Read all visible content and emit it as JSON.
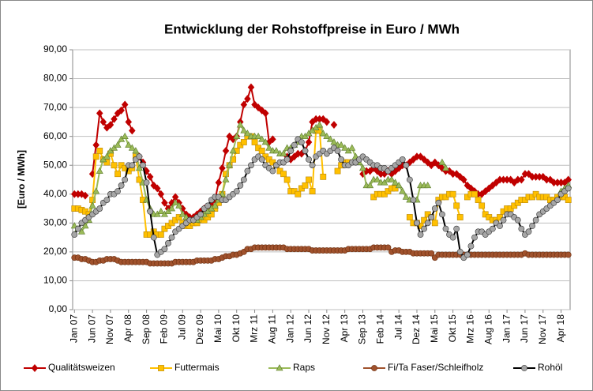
{
  "chart_data": {
    "type": "line",
    "title": "Entwicklung der Rohstoffpreise in Euro / MWh",
    "y_label": "[Euro / MWh]",
    "ylim": [
      0,
      90
    ],
    "yticks": [
      {
        "value": 0,
        "label": "0,00"
      },
      {
        "value": 10,
        "label": "10,00"
      },
      {
        "value": 20,
        "label": "20,00"
      },
      {
        "value": 30,
        "label": "30,00"
      },
      {
        "value": 40,
        "label": "40,00"
      },
      {
        "value": 50,
        "label": "50,00"
      },
      {
        "value": 60,
        "label": "60,00"
      },
      {
        "value": 70,
        "label": "70,00"
      },
      {
        "value": 80,
        "label": "80,00"
      },
      {
        "value": 90,
        "label": "90,00"
      }
    ],
    "grid": true,
    "legend": "bottom",
    "categories": [
      "Jan 07",
      null,
      null,
      null,
      null,
      "Jun 07",
      null,
      null,
      null,
      null,
      "Nov 07",
      null,
      null,
      null,
      null,
      "Apr 08",
      null,
      null,
      null,
      null,
      "Sep 08",
      null,
      null,
      null,
      null,
      "Feb 09",
      null,
      null,
      null,
      null,
      "Jul 09",
      null,
      null,
      null,
      null,
      "Dez 09",
      null,
      null,
      null,
      null,
      "Mai 10",
      null,
      null,
      null,
      null,
      "Okt 10",
      null,
      null,
      null,
      null,
      "Mrz 11",
      null,
      null,
      null,
      null,
      "Aug 11",
      null,
      null,
      null,
      null,
      "Jan 12",
      null,
      null,
      null,
      null,
      "Jun 12",
      null,
      null,
      null,
      null,
      "Nov 12",
      null,
      null,
      null,
      null,
      "Apr 13",
      null,
      null,
      null,
      null,
      "Sep 13",
      null,
      null,
      null,
      null,
      "Feb 14",
      null,
      null,
      null,
      null,
      "Jul 14",
      null,
      null,
      null,
      null,
      "Dez 14",
      null,
      null,
      null,
      null,
      "Mai 15",
      null,
      null,
      null,
      null,
      "Okt 15",
      null,
      null,
      null,
      null,
      "Mrz 16",
      null,
      null,
      null,
      null,
      "Aug 16",
      null,
      null,
      null,
      null,
      "Jan 17",
      null,
      null,
      null,
      null,
      "Jun 17",
      null,
      null,
      null,
      null,
      "Nov 17",
      null,
      null,
      null,
      null,
      "Apr 18",
      null,
      null
    ],
    "series": [
      {
        "name": "Qualitätsweizen",
        "color": "#c00000",
        "line_color": "#c00000",
        "marker": "diamond",
        "values": [
          40,
          40,
          40,
          39.5,
          null,
          47,
          57,
          68,
          65,
          63,
          64,
          66,
          68,
          69,
          71,
          65,
          62,
          null,
          53,
          51,
          48,
          46,
          43,
          42,
          40,
          37,
          35,
          37,
          39,
          37,
          35,
          33,
          32,
          32,
          33,
          34,
          35,
          35,
          36,
          38,
          44,
          49,
          55,
          60,
          59,
          60,
          65,
          71,
          73,
          77,
          71,
          70,
          69,
          68,
          58,
          59,
          null,
          null,
          null,
          53,
          52,
          53,
          54,
          54,
          55,
          58,
          65,
          66,
          66,
          66,
          65,
          null,
          64,
          null,
          null,
          null,
          null,
          null,
          null,
          null,
          47,
          48,
          48,
          49,
          48,
          47,
          47,
          48,
          47,
          48,
          49,
          50,
          50,
          51,
          52,
          53,
          53,
          52,
          51,
          50,
          51,
          50,
          49,
          48,
          48,
          47,
          47,
          46,
          45,
          43,
          42,
          41,
          40,
          40,
          41,
          42,
          43,
          44,
          45,
          45,
          45,
          45,
          44,
          45,
          45,
          47,
          47,
          46,
          46,
          46,
          46,
          45,
          45,
          44,
          44,
          44,
          44,
          45
        ]
      },
      {
        "name": "Futtermais",
        "color": "#ffc000",
        "line_color": "#ffc000",
        "marker": "square",
        "values": [
          35,
          35,
          34.5,
          34,
          33,
          38,
          53,
          55,
          52,
          51,
          54,
          50,
          47,
          50,
          49,
          48,
          49,
          53,
          45,
          38,
          26,
          26,
          27,
          26,
          26,
          28,
          29,
          30,
          31,
          32,
          30,
          29,
          29,
          30,
          30,
          31,
          31,
          32,
          33,
          35,
          37,
          40,
          47,
          50,
          52,
          55,
          57,
          58,
          60,
          60,
          58,
          56,
          55,
          53,
          52,
          51,
          50,
          48,
          47,
          45,
          41,
          41,
          40,
          42,
          43,
          45,
          41,
          62,
          62,
          46,
          null,
          null,
          null,
          48,
          50,
          51,
          51,
          null,
          null,
          null,
          null,
          null,
          null,
          39,
          40,
          40,
          40,
          41,
          42,
          42,
          null,
          null,
          null,
          32,
          30,
          30,
          29,
          31,
          33,
          32,
          30,
          38,
          39,
          39,
          40,
          40,
          36,
          32,
          null,
          39,
          40,
          40,
          38,
          36,
          33,
          32,
          31,
          31,
          32,
          34,
          35,
          35,
          36,
          37,
          38,
          38,
          39,
          39,
          40,
          39,
          39,
          39,
          38,
          38,
          39,
          39,
          39,
          38
        ]
      },
      {
        "name": "Raps",
        "color": "#9bbb59",
        "line_color": "#9bbb59",
        "marker": "triangle",
        "values": [
          29,
          28,
          27,
          29,
          31,
          36,
          41,
          48,
          52,
          53,
          55,
          56,
          57,
          59,
          60,
          57,
          56,
          55,
          49,
          44,
          38,
          35,
          33,
          33,
          34,
          33,
          34,
          35,
          37,
          36,
          33,
          32,
          31,
          31,
          31,
          32,
          33,
          34,
          35,
          36,
          38,
          40,
          45,
          50,
          55,
          60,
          64,
          62,
          61,
          60,
          60,
          60,
          59,
          58,
          56,
          55,
          55,
          54,
          54,
          56,
          56,
          57,
          58,
          60,
          60,
          61,
          62,
          63,
          64,
          61,
          60,
          59,
          58,
          57,
          57,
          56,
          55,
          56,
          53,
          51,
          49,
          43,
          43,
          45,
          45,
          44,
          44,
          45,
          45,
          44,
          43,
          41,
          39,
          38,
          38,
          38,
          43,
          43,
          43,
          null,
          null,
          null,
          51,
          49,
          null,
          null,
          null,
          null,
          null,
          null,
          null,
          null,
          null,
          null,
          null,
          null,
          null,
          null,
          null,
          null,
          null,
          null,
          null,
          null,
          null,
          null,
          null,
          null,
          null,
          null,
          null,
          null,
          null,
          null,
          null,
          41,
          42,
          43
        ]
      },
      {
        "name": "Fi/Ta Faser/Schleifholz",
        "color": "#a0522d",
        "line_color": "#a0522d",
        "marker": "circle",
        "values": [
          18,
          18,
          17.5,
          17.5,
          17,
          16.5,
          16.5,
          17,
          17,
          17.5,
          17.5,
          17.5,
          17,
          16.5,
          16.5,
          16.5,
          16.5,
          16.5,
          16.5,
          16.5,
          16.5,
          16,
          16,
          16,
          16,
          16,
          16,
          16,
          16.5,
          16.5,
          16.5,
          16.5,
          16.5,
          16.5,
          17,
          17,
          17,
          17,
          17,
          17.5,
          17.5,
          18,
          18.5,
          18.5,
          19,
          19,
          19.5,
          20,
          21,
          21,
          21.5,
          21.5,
          21.5,
          21.5,
          21.5,
          21.5,
          21.5,
          21.5,
          21.5,
          21,
          21,
          21,
          21,
          21,
          21,
          21,
          20.5,
          20.5,
          20.5,
          20.5,
          20.5,
          20.5,
          20.5,
          20.5,
          20.5,
          20.5,
          21,
          21,
          21,
          21,
          21,
          21,
          21,
          21.5,
          21.5,
          21.5,
          21.5,
          21.5,
          20,
          20.5,
          20.5,
          20,
          20,
          20,
          19.5,
          19.5,
          19.5,
          19.5,
          19.5,
          19.5,
          18,
          19,
          19,
          19,
          19,
          19,
          19,
          19,
          19,
          19,
          19,
          19,
          19,
          19,
          19,
          19,
          19,
          19,
          19,
          19,
          19,
          19,
          19,
          19,
          19,
          19.5,
          19,
          19,
          19,
          19,
          19,
          19,
          19,
          19,
          19,
          19,
          19,
          19
        ]
      },
      {
        "name": "Rohöl",
        "color": "#a6a6a6",
        "line_color": "#000000",
        "marker": "circle",
        "values": [
          26,
          28,
          30,
          31,
          32,
          33,
          34,
          35,
          37,
          38,
          40,
          40,
          41,
          43,
          45,
          50,
          50,
          52,
          53,
          50,
          44,
          34,
          25,
          19,
          20,
          21,
          23,
          25,
          27,
          28,
          29,
          30,
          31,
          31,
          32,
          33,
          35,
          36,
          38,
          39,
          39,
          38,
          38,
          39,
          40,
          41,
          43,
          45,
          48,
          50,
          52,
          53,
          52,
          50,
          49,
          48,
          50,
          51,
          51,
          52,
          55,
          57,
          59,
          58,
          55,
          52,
          50,
          53,
          54,
          55,
          54,
          55,
          56,
          55,
          52,
          50,
          50,
          51,
          51,
          52,
          53,
          52,
          51,
          50,
          50,
          49,
          49,
          48,
          49,
          50,
          51,
          52,
          50,
          45,
          38,
          30,
          26,
          28,
          30,
          32,
          35,
          37,
          33,
          28,
          26,
          25,
          28,
          20,
          18,
          19,
          22,
          25,
          27,
          27,
          26,
          27,
          28,
          30,
          29,
          31,
          33,
          33,
          32,
          31,
          28,
          26,
          27,
          29,
          31,
          33,
          34,
          35,
          36,
          37,
          38,
          40,
          41,
          42
        ]
      }
    ]
  }
}
